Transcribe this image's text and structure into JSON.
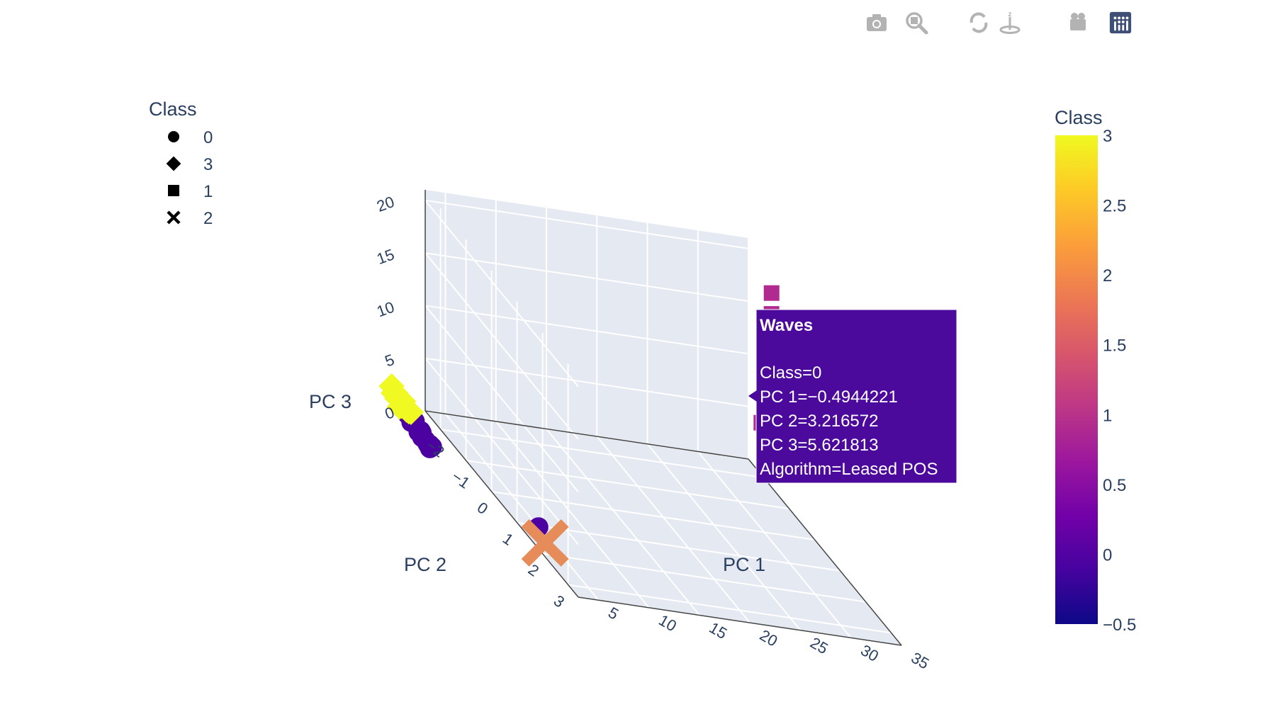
{
  "modebar": {
    "buttons": [
      {
        "icon": "camera-icon",
        "name": "download-plot-button"
      },
      {
        "icon": "zoom-icon",
        "name": "zoom-button"
      },
      {
        "icon": "pan-icon",
        "name": "pan-button"
      },
      {
        "icon": "orbit-rotation-icon",
        "name": "orbit-rotation-button"
      },
      {
        "icon": "turntable-rotation-icon",
        "name": "turntable-rotation-button"
      },
      {
        "icon": "home-icon",
        "name": "reset-camera-button"
      },
      {
        "icon": "video-camera-icon",
        "name": "save-camera-button"
      },
      {
        "icon": "plotly-logo-icon",
        "name": "plotly-logo"
      }
    ],
    "icon_color": "#b3b3b3",
    "logo_color": "#3f4f75"
  },
  "legend": {
    "title": "Class",
    "items": [
      {
        "label": "0",
        "symbol": "circle"
      },
      {
        "label": "3",
        "symbol": "diamond"
      },
      {
        "label": "1",
        "symbol": "square"
      },
      {
        "label": "2",
        "symbol": "x"
      }
    ]
  },
  "colorbar": {
    "title": "Class",
    "ticks": [
      "3",
      "2.5",
      "2",
      "1.5",
      "1",
      "0.5",
      "0",
      "−0.5"
    ],
    "range": [
      -0.5,
      3
    ],
    "colorscale": [
      "#0d0887",
      "#46039f",
      "#7201a8",
      "#9c179e",
      "#bd3786",
      "#d8576b",
      "#ed7953",
      "#fb9f3a",
      "#fdca26",
      "#f0f921"
    ]
  },
  "axes": {
    "x": {
      "label": "PC 1",
      "ticks": [
        "5",
        "10",
        "15",
        "20",
        "25",
        "30",
        "35"
      ]
    },
    "y": {
      "label": "PC 2",
      "ticks": [
        "−2",
        "−1",
        "0",
        "1",
        "2",
        "3"
      ]
    },
    "z": {
      "label": "PC 3",
      "ticks": [
        "0",
        "5",
        "10",
        "15",
        "20"
      ]
    }
  },
  "tooltip": {
    "title": "Waves",
    "lines": [
      "Class=0",
      "PC 1=−0.4944221",
      "PC 2=3.216572",
      "PC 3=5.621813",
      "Algorithm=Leased POS"
    ],
    "bg_color": "#4c0a9c"
  },
  "chart_data": {
    "type": "scatter",
    "title": "",
    "xlabel": "PC 1",
    "ylabel": "PC 2",
    "zlabel": "PC 3",
    "xlim": [
      3,
      35
    ],
    "ylim": [
      -2.6,
      3.4
    ],
    "zlim": [
      0,
      21
    ],
    "color_by": "Class",
    "series": [
      {
        "name": "0",
        "symbol": "circle",
        "color": "#4c02a1",
        "points": [
          [
            -0.49,
            3.22,
            5.62
          ],
          [
            -0.3,
            -2.0,
            1.0
          ],
          [
            -0.4,
            -1.8,
            0.8
          ],
          [
            -0.2,
            -1.6,
            0.5
          ],
          [
            -0.3,
            -1.7,
            1.2
          ],
          [
            -0.1,
            -1.5,
            0.3
          ],
          [
            0.0,
            -1.55,
            0.6
          ],
          [
            0.1,
            -1.45,
            0.2
          ],
          [
            -0.2,
            -1.9,
            0.9
          ],
          [
            0.2,
            -1.4,
            0.0
          ],
          [
            0.3,
            -1.35,
            0.1
          ],
          [
            0.4,
            -1.3,
            0.05
          ],
          [
            -0.35,
            -2.05,
            1.4
          ],
          [
            0.15,
            -1.65,
            0.5
          ],
          [
            0.05,
            -1.25,
            0.0
          ]
        ]
      },
      {
        "name": "3",
        "symbol": "diamond",
        "color": "#f0f921",
        "points": [
          [
            -0.4,
            -2.5,
            1.5
          ],
          [
            -0.35,
            -2.45,
            1.7
          ],
          [
            -0.3,
            -2.4,
            1.3
          ],
          [
            -0.25,
            -2.35,
            1.6
          ],
          [
            -0.2,
            -2.3,
            1.4
          ],
          [
            -0.15,
            -2.25,
            1.2
          ],
          [
            -0.1,
            -2.2,
            1.1
          ],
          [
            -0.05,
            -2.25,
            1.5
          ],
          [
            0.0,
            -2.15,
            1.0
          ],
          [
            -0.3,
            -2.3,
            0.8
          ],
          [
            -0.1,
            -2.3,
            0.9
          ],
          [
            0.1,
            -2.1,
            1.0
          ],
          [
            -0.2,
            -2.2,
            1.3
          ],
          [
            -0.45,
            -2.55,
            2.0
          ],
          [
            0.05,
            -2.4,
            1.2
          ],
          [
            0.2,
            -2.05,
            1.1
          ]
        ]
      },
      {
        "name": "1",
        "symbol": "square",
        "color": "#b12a90",
        "points": [
          [
            33.0,
            -0.9,
            20.5
          ],
          [
            33.5,
            -1.1,
            18.0
          ],
          [
            34.0,
            -1.0,
            12.0
          ],
          [
            33.0,
            -1.3,
            7.0
          ],
          [
            34.5,
            -0.9,
            5.0
          ]
        ]
      },
      {
        "name": "2",
        "symbol": "x",
        "color": "#e58c5a",
        "points": [
          [
            3.5,
            1.9,
            0.8
          ]
        ]
      }
    ]
  }
}
